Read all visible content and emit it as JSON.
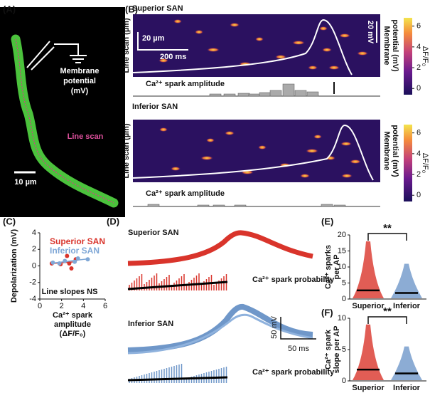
{
  "figure": {
    "panel_labels": [
      "(A)",
      "(B)",
      "(C)",
      "(D)",
      "(E)",
      "(F)"
    ],
    "a": {
      "electrode_label": [
        "Membrane",
        "potential",
        "(mV)"
      ],
      "line_scan": "Line scan",
      "scale": "10 µm"
    },
    "b": {
      "top_title": "Superior SAN",
      "bottom_title": "Inferior SAN",
      "y_label": "Line scan (µm)",
      "right_label": [
        "Membrane",
        "potential (mV)"
      ],
      "scale_space": "20 µm",
      "scale_time": "200 ms",
      "scale_voltage": "20 mV",
      "amplitude_label": "Ca²⁺ spark amplitude",
      "colorbar_label": "ΔF/F₀",
      "colorbar_lim": [
        -0.6,
        6.8
      ],
      "colorbar_ticks": [
        6,
        4,
        2,
        0
      ]
    },
    "d": {
      "top_title": "Superior SAN",
      "bottom_title": "Inferior SAN",
      "probability_label": "Ca²⁺ spark probability",
      "scale_voltage": "50 mV",
      "scale_time": "50 ms"
    }
  },
  "chart_data": [
    {
      "type": "scatter",
      "xlabel": [
        "Ca²⁺ spark",
        "amplitude",
        "(ΔF/F₀)"
      ],
      "ylabel": "Depolarization (mV)",
      "xlim": [
        0,
        6
      ],
      "ylim": [
        -4,
        4
      ],
      "xticks": [
        0,
        2,
        4,
        6
      ],
      "yticks": [
        4,
        2,
        0,
        -2,
        -4
      ],
      "annotation": "Line slopes NS",
      "series": [
        {
          "name": "Superior SAN",
          "color": "#d9342b",
          "x": [
            1.1,
            2.5,
            2.7,
            2.9,
            3.3,
            1.9
          ],
          "values": [
            0.3,
            1.2,
            0.3,
            -0.3,
            0.8,
            0.2
          ]
        },
        {
          "name": "Inferior SAN",
          "color": "#7fa7d6",
          "x": [
            1.2,
            1.8,
            2.3,
            3.2,
            3.5,
            4.4
          ],
          "values": [
            0.4,
            0.3,
            0.6,
            0.5,
            0.9,
            0.8
          ]
        }
      ]
    },
    {
      "type": "strip",
      "ylabel": [
        "Ca²⁺ sparks",
        "per AP"
      ],
      "categories": [
        "Superior",
        "Inferior"
      ],
      "ylim": [
        0,
        20
      ],
      "yticks": [
        0,
        5,
        10,
        15,
        20
      ],
      "annotation": "**",
      "values": [
        2.7,
        1.9
      ],
      "colors": [
        "#d9342b",
        "#6f97c9"
      ]
    },
    {
      "type": "strip",
      "ylabel": [
        "Ca²⁺ spark",
        "slope per AP"
      ],
      "categories": [
        "Superior",
        "Inferior"
      ],
      "ylim": [
        0,
        10
      ],
      "yticks": [
        0,
        5,
        10
      ],
      "annotation": "**",
      "values": [
        1.8,
        1.2
      ],
      "colors": [
        "#d9342b",
        "#6f97c9"
      ]
    }
  ]
}
